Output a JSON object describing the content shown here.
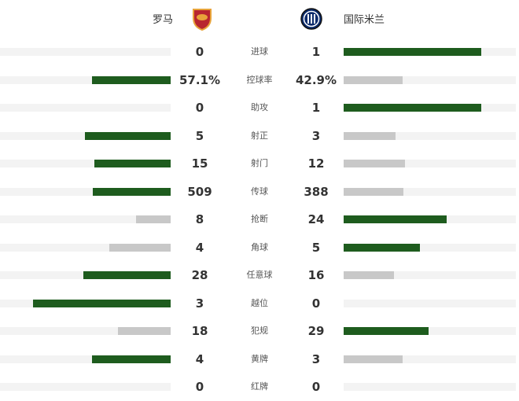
{
  "home": {
    "name": "罗马",
    "logo": "as-roma-crest"
  },
  "away": {
    "name": "国际米兰",
    "logo": "inter-milan-crest"
  },
  "colors": {
    "leading": "#1e5c1e",
    "trailing": "#c8c8c8",
    "track": "#f3f3f3"
  },
  "stats": [
    {
      "label": "进球",
      "home": "0",
      "away": "1",
      "home_share": 0,
      "away_share": 1
    },
    {
      "label": "控球率",
      "home": "57.1%",
      "away": "42.9%",
      "home_share": 0.571,
      "away_share": 0.429
    },
    {
      "label": "助攻",
      "home": "0",
      "away": "1",
      "home_share": 0,
      "away_share": 1
    },
    {
      "label": "射正",
      "home": "5",
      "away": "3",
      "home_share": 0.625,
      "away_share": 0.375
    },
    {
      "label": "射门",
      "home": "15",
      "away": "12",
      "home_share": 0.556,
      "away_share": 0.444
    },
    {
      "label": "传球",
      "home": "509",
      "away": "388",
      "home_share": 0.567,
      "away_share": 0.433
    },
    {
      "label": "抢断",
      "home": "8",
      "away": "24",
      "home_share": 0.25,
      "away_share": 0.75
    },
    {
      "label": "角球",
      "home": "4",
      "away": "5",
      "home_share": 0.444,
      "away_share": 0.556
    },
    {
      "label": "任意球",
      "home": "28",
      "away": "16",
      "home_share": 0.636,
      "away_share": 0.364
    },
    {
      "label": "越位",
      "home": "3",
      "away": "0",
      "home_share": 1,
      "away_share": 0
    },
    {
      "label": "犯规",
      "home": "18",
      "away": "29",
      "home_share": 0.383,
      "away_share": 0.617
    },
    {
      "label": "黄牌",
      "home": "4",
      "away": "3",
      "home_share": 0.571,
      "away_share": 0.429
    },
    {
      "label": "红牌",
      "home": "0",
      "away": "0",
      "home_share": 0,
      "away_share": 0
    }
  ]
}
